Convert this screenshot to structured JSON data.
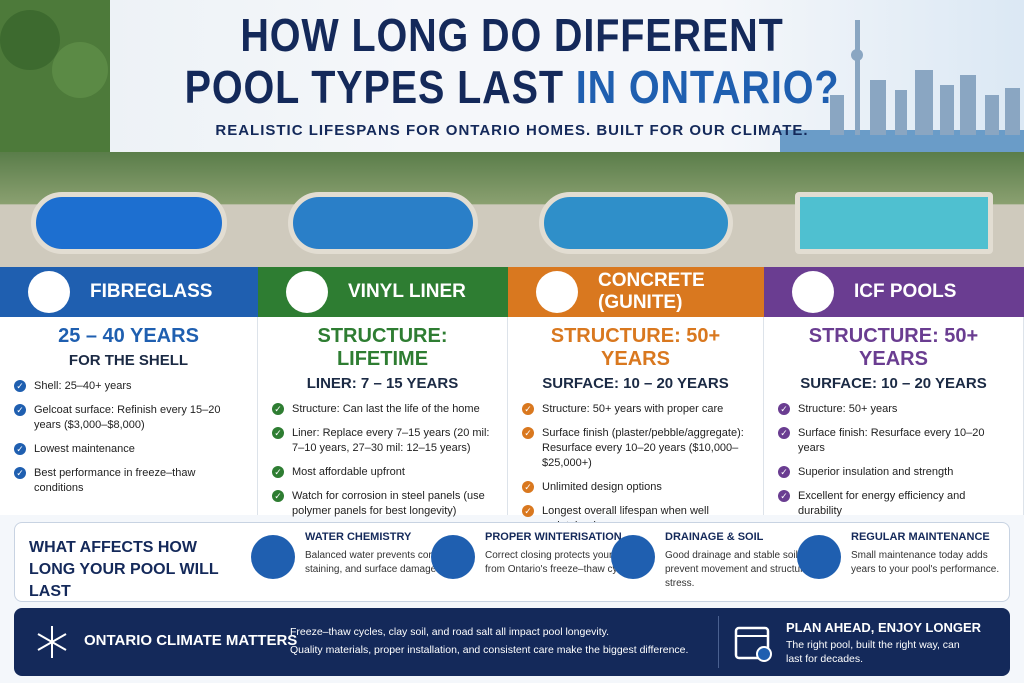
{
  "header": {
    "title_line1": "HOW LONG DO DIFFERENT",
    "title_line2a": "POOL TYPES LAST",
    "title_line2b": "IN ONTARIO?",
    "subtitle": "REALISTIC LIFESPANS FOR ONTARIO HOMES. BUILT FOR OUR CLIMATE."
  },
  "cards": [
    {
      "name": "FIBREGLASS",
      "headline": "25 – 40 YEARS",
      "subline": "FOR THE SHELL",
      "bullets": [
        "Shell: 25–40+ years",
        "Gelcoat surface: Refinish every 15–20 years ($3,000–$8,000)",
        "Lowest maintenance",
        "Best performance in freeze–thaw conditions"
      ]
    },
    {
      "name": "VINYL LINER",
      "headline": "STRUCTURE: LIFETIME",
      "subline": "LINER: 7 – 15 YEARS",
      "bullets": [
        "Structure: Can last the life of the home",
        "Liner: Replace every 7–15 years (20 mil: 7–10 years, 27–30 mil: 12–15 years)",
        "Most affordable upfront",
        "Watch for corrosion in steel panels (use polymer panels for best longevity)"
      ]
    },
    {
      "name": "CONCRETE (GUNITE)",
      "headline": "STRUCTURE: 50+ YEARS",
      "subline": "SURFACE: 10 – 20 YEARS",
      "bullets": [
        "Structure: 50+ years with proper care",
        "Surface finish (plaster/pebble/aggregate): Resurface every 10–20 years ($10,000–$25,000+)",
        "Unlimited design options",
        "Longest overall lifespan when well maintained"
      ]
    },
    {
      "name": "ICF POOLS",
      "headline": "STRUCTURE: 50+ YEARS",
      "subline": "SURFACE: 10 – 20 YEARS",
      "bullets": [
        "Structure: 50+ years",
        "Surface finish: Resurface every 10–20 years",
        "Superior insulation and strength",
        "Excellent for energy efficiency and durability"
      ]
    }
  ],
  "factors": {
    "heading": "WHAT AFFECTS HOW LONG YOUR POOL WILL LAST",
    "items": [
      {
        "title": "WATER CHEMISTRY",
        "text": "Balanced water prevents corrosion, staining, and surface damage."
      },
      {
        "title": "PROPER WINTERISATION",
        "text": "Correct closing protects your pool from Ontario's freeze–thaw cycles."
      },
      {
        "title": "DRAINAGE & SOIL",
        "text": "Good drainage and stable soil prevent movement and structural stress."
      },
      {
        "title": "REGULAR MAINTENANCE",
        "text": "Small maintenance today adds years to your pool's performance."
      }
    ]
  },
  "footer": {
    "title": "ONTARIO CLIMATE MATTERS",
    "line1": "Freeze–thaw cycles, clay soil, and road salt all impact pool longevity.",
    "line2": "Quality materials, proper installation, and consistent care make the biggest difference.",
    "plan_title": "PLAN AHEAD, ENJOY LONGER",
    "plan_text": "The right pool, built the right way, can last for decades."
  }
}
